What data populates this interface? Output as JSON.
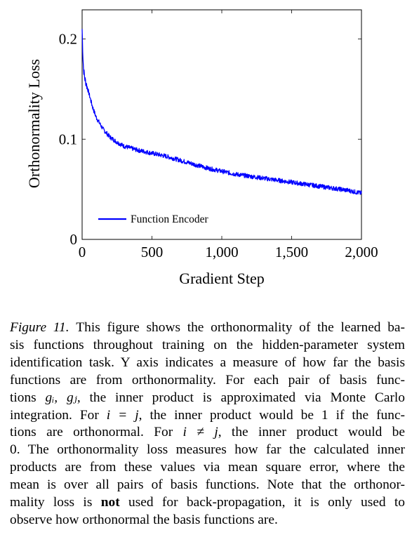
{
  "chart_data": {
    "type": "line",
    "xlabel": "Gradient Step",
    "ylabel": "Orthonormality Loss",
    "xlim": [
      0,
      2000
    ],
    "ylim": [
      0,
      0.22
    ],
    "xticks": [
      {
        "value": 0,
        "label": "0"
      },
      {
        "value": 500,
        "label": "500"
      },
      {
        "value": 1000,
        "label": "1,000"
      },
      {
        "value": 1500,
        "label": "1,500"
      },
      {
        "value": 2000,
        "label": "2,000"
      }
    ],
    "yticks": [
      {
        "value": 0,
        "label": "0"
      },
      {
        "value": 0.1,
        "label": "0.1"
      },
      {
        "value": 0.2,
        "label": "0.2"
      }
    ],
    "grid": false,
    "legend": {
      "position": "bottom-left",
      "entries": [
        "Function Encoder"
      ]
    },
    "series": [
      {
        "name": "Function Encoder",
        "color": "#0000ff",
        "x": [
          0,
          5,
          10,
          20,
          30,
          50,
          75,
          100,
          150,
          200,
          250,
          300,
          350,
          400,
          500,
          600,
          700,
          800,
          900,
          1000,
          1100,
          1200,
          1300,
          1400,
          1500,
          1600,
          1700,
          1800,
          1900,
          2000
        ],
        "y": [
          0.21,
          0.185,
          0.17,
          0.16,
          0.155,
          0.145,
          0.132,
          0.122,
          0.11,
          0.102,
          0.097,
          0.093,
          0.091,
          0.089,
          0.086,
          0.083,
          0.079,
          0.075,
          0.071,
          0.068,
          0.065,
          0.063,
          0.061,
          0.059,
          0.057,
          0.055,
          0.053,
          0.051,
          0.049,
          0.046
        ]
      }
    ]
  },
  "caption": {
    "figure_label": "Figure 11.",
    "lines": [
      [
        "This figure shows the orthonormality of the learned ba-"
      ],
      [
        "sis functions throughout training on the hidden-parameter system"
      ],
      [
        "identification task. Y axis indicates a measure of how far the basis"
      ],
      [
        "functions are from orthonormality.  For each pair of basis func-"
      ],
      [
        "tions ",
        "gᵢ, gⱼ",
        ", the inner product is approximated via Monte Carlo"
      ],
      [
        "integration. For ",
        "i = j",
        ", the inner product would be 1 if the func-"
      ],
      [
        "tions are orthonormal.  For ",
        "i ≠ j",
        ", the inner product would be"
      ],
      [
        "0. The orthonormality loss measures how far the calculated inner"
      ],
      [
        "products are from these values via mean square error, where the"
      ],
      [
        "mean is over all pairs of basis functions.  Note that the orthonor-"
      ],
      [
        "mality loss is ",
        "not",
        " used for back-propagation, it is only used to"
      ],
      [
        "observe how orthonormal the basis functions are."
      ]
    ]
  }
}
